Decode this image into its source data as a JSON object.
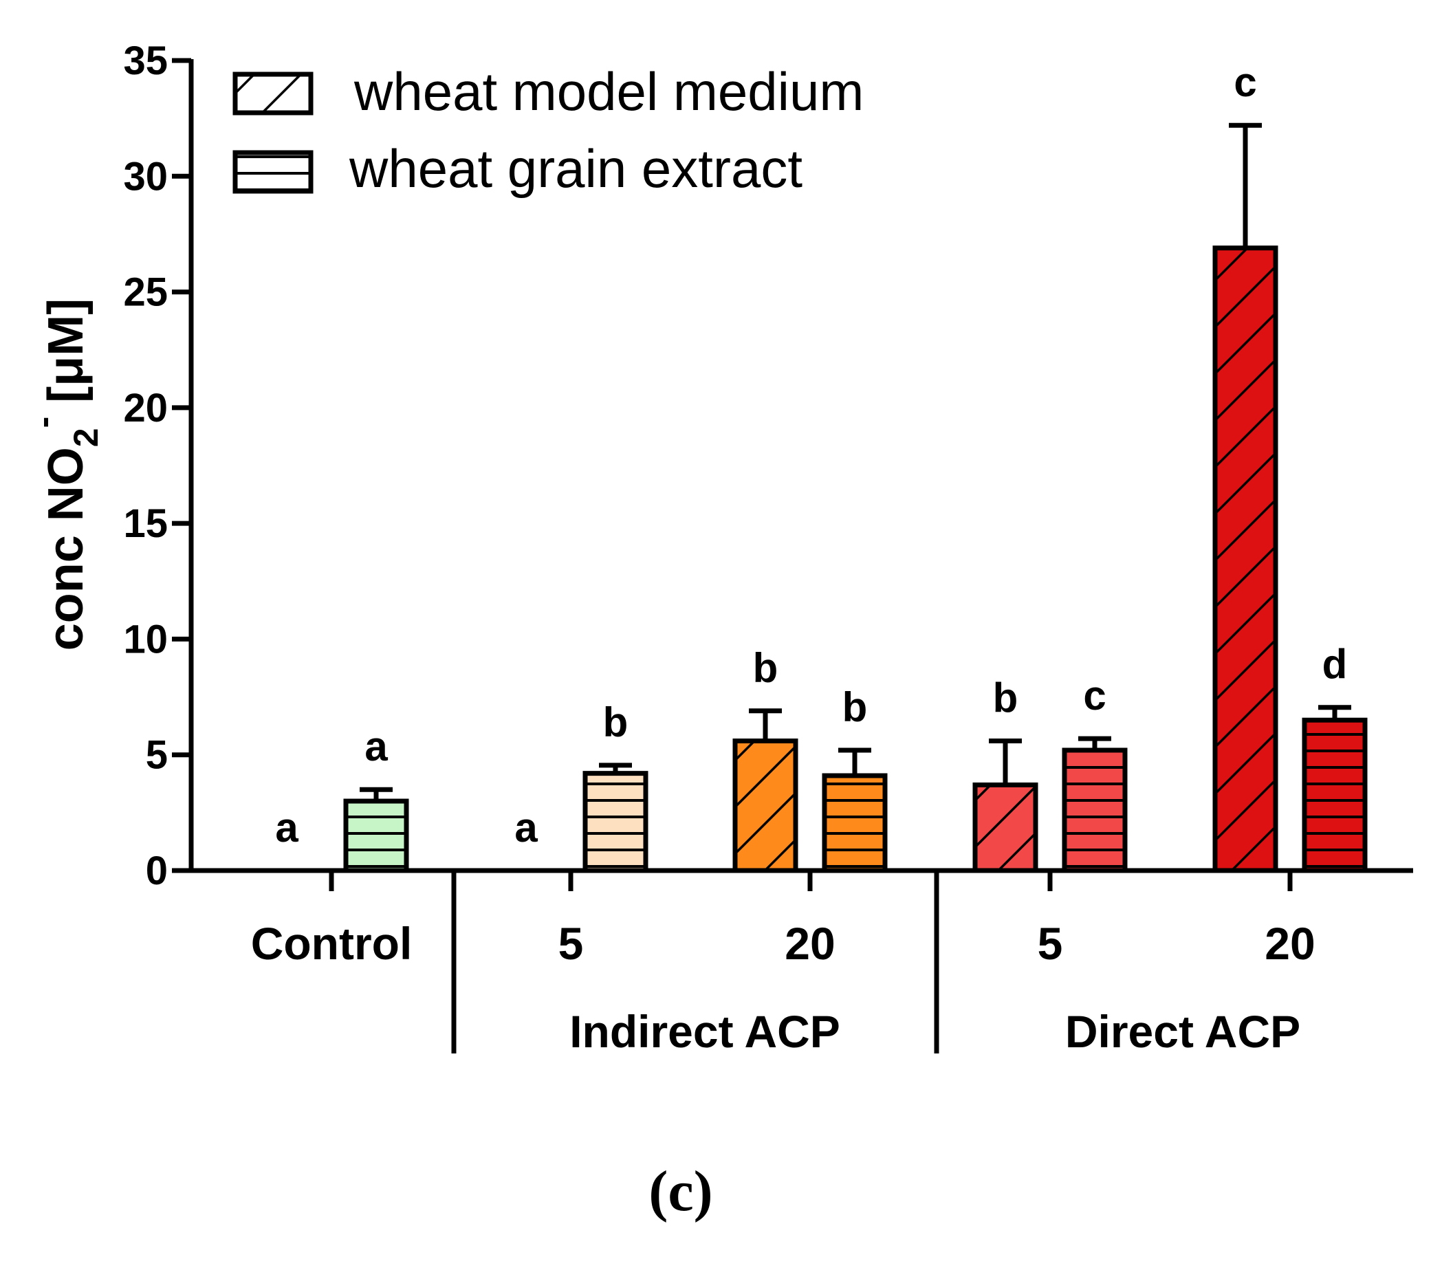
{
  "chart_data": {
    "type": "bar",
    "title": "",
    "ylabel_main": "conc NO",
    "ylabel_sub": "2",
    "ylabel_sup": "-",
    "ylabel_unit": " [μM]",
    "xlabel": "",
    "ylim": [
      0,
      35
    ],
    "yticks": [
      0,
      5,
      10,
      15,
      20,
      25,
      30,
      35
    ],
    "legend": {
      "position": "top-left",
      "entries": [
        {
          "name": "wheat model medium",
          "pattern": "diagonal"
        },
        {
          "name": "wheat grain extract",
          "pattern": "horizontal"
        }
      ]
    },
    "categories": [
      "Control",
      "5",
      "20",
      "5",
      "20"
    ],
    "groups": [
      "Indirect ACP",
      "Direct ACP"
    ],
    "series": [
      {
        "name": "wheat model medium",
        "values": [
          0,
          0,
          5.6,
          3.7,
          26.9
        ],
        "errors": [
          0,
          0,
          1.3,
          1.9,
          5.3
        ],
        "letters": [
          "a",
          "a",
          "b",
          "b",
          "c"
        ],
        "colors": [
          "#c8f5c8",
          "#fde0c0",
          "#ff8a1c",
          "#f24848",
          "#dd1111"
        ]
      },
      {
        "name": "wheat grain extract",
        "values": [
          3.0,
          4.2,
          4.1,
          5.2,
          6.5
        ],
        "errors": [
          0.5,
          0.35,
          1.1,
          0.5,
          0.55
        ],
        "letters": [
          "a",
          "b",
          "b",
          "c",
          "d"
        ],
        "colors": [
          "#c8f5c8",
          "#fde0c0",
          "#ff8a1c",
          "#f24848",
          "#dd1111"
        ]
      }
    ],
    "panel_label": "(c)"
  }
}
